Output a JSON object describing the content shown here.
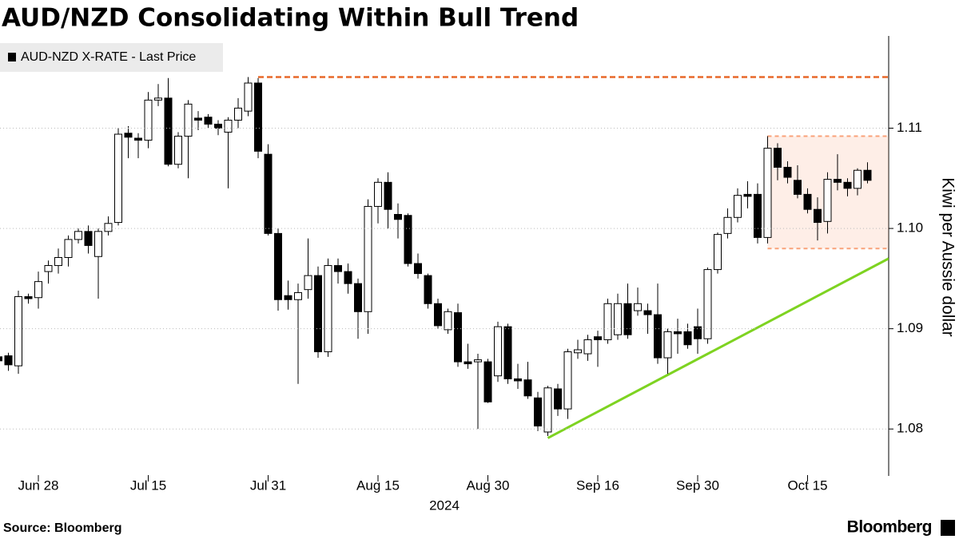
{
  "chart_data": {
    "type": "candlestick",
    "title": "AUD/NZD Consolidating Within Bull Trend",
    "legend": "AUD-NZD X-RATE - Last Price",
    "y_axis_label": "Kiwi per Aussie dollar",
    "source": "Source: Bloomberg",
    "brand": "Bloomberg",
    "year_label": "2024",
    "categories": [
      null,
      null,
      null,
      null,
      "Jun 28",
      null,
      null,
      null,
      null,
      null,
      null,
      null,
      null,
      null,
      null,
      "Jul 15",
      null,
      null,
      null,
      null,
      null,
      null,
      null,
      null,
      null,
      null,
      null,
      "Jul 31",
      null,
      null,
      null,
      null,
      null,
      null,
      null,
      null,
      null,
      null,
      "Aug 15",
      null,
      null,
      null,
      null,
      null,
      null,
      null,
      null,
      null,
      null,
      "Aug 30",
      null,
      null,
      null,
      null,
      null,
      null,
      null,
      null,
      null,
      null,
      "Sep 16",
      null,
      null,
      null,
      null,
      null,
      null,
      null,
      null,
      null,
      "Sep 30",
      null,
      null,
      null,
      null,
      null,
      null,
      null,
      null,
      null,
      null,
      "Oct 15",
      null,
      null,
      null,
      null,
      null,
      null
    ],
    "open": [
      1.0872,
      1.0873,
      1.0863,
      1.0932,
      1.0931,
      1.0957,
      1.0963,
      1.0971,
      1.0989,
      1.0997,
      1.0972,
      1.0997,
      1.1006,
      1.1095,
      1.109,
      1.1088,
      1.1128,
      1.113,
      1.1064,
      1.1092,
      1.111,
      1.1111,
      1.1104,
      1.1096,
      1.1108,
      1.1117,
      1.1145,
      1.1074,
      1.0995,
      1.0933,
      1.0929,
      1.0939,
      1.0953,
      1.0877,
      1.0963,
      1.0957,
      1.0945,
      1.0917,
      1.1022,
      1.1046,
      1.1014,
      1.1013,
      1.0965,
      1.0953,
      1.0925,
      1.0899,
      1.0916,
      1.0867,
      1.0867,
      1.0867,
      1.0853,
      1.0902,
      1.085,
      1.0849,
      1.0831,
      1.0797,
      1.084,
      1.082,
      1.0876,
      1.0875,
      1.0892,
      1.0889,
      1.0894,
      1.0925,
      1.0918,
      1.0918,
      1.0914,
      1.0871,
      1.0897,
      1.0897,
      1.0902,
      1.089,
      1.0959,
      1.0995,
      1.1011,
      1.1034,
      1.1034,
      1.0991,
      1.108,
      1.1061,
      1.1048,
      1.1034,
      1.1019,
      1.1007,
      1.1049,
      1.1046,
      1.104,
      1.1058
    ],
    "high": [
      1.0877,
      1.0876,
      1.0938,
      1.0935,
      1.0957,
      1.0968,
      1.098,
      1.0993,
      1.1,
      1.1003,
      1.1,
      1.1012,
      1.11,
      1.1102,
      1.1095,
      1.1136,
      1.1144,
      1.115,
      1.1096,
      1.1128,
      1.1117,
      1.1114,
      1.1108,
      1.1111,
      1.113,
      1.1151,
      1.115,
      1.1084,
      1.1,
      1.0948,
      1.0945,
      1.099,
      1.0962,
      1.097,
      1.097,
      1.0965,
      1.095,
      1.1029,
      1.105,
      1.1056,
      1.1025,
      1.1015,
      1.0975,
      1.0955,
      1.093,
      1.092,
      1.0925,
      1.0885,
      1.0875,
      1.087,
      1.0907,
      1.0905,
      1.0865,
      1.0867,
      1.0837,
      1.0843,
      1.0845,
      1.088,
      1.0889,
      1.0894,
      1.0898,
      1.093,
      1.0935,
      1.0945,
      1.0941,
      1.0925,
      1.0945,
      1.09,
      1.091,
      1.0905,
      1.092,
      1.0961,
      1.0996,
      1.102,
      1.104,
      1.1047,
      1.1045,
      1.1092,
      1.1085,
      1.1067,
      1.1063,
      1.104,
      1.1031,
      1.1056,
      1.1074,
      1.105,
      1.106,
      1.1066
    ],
    "low": [
      1.086,
      1.0858,
      1.0855,
      1.0925,
      1.092,
      1.0945,
      1.0955,
      1.0962,
      1.0985,
      1.0975,
      1.093,
      1.0993,
      1.1003,
      1.107,
      1.107,
      1.108,
      1.1122,
      1.1062,
      1.106,
      1.105,
      1.1098,
      1.11,
      1.1093,
      1.104,
      1.11,
      1.1112,
      1.107,
      1.0993,
      1.0918,
      1.0919,
      1.0845,
      1.093,
      1.0871,
      1.0872,
      1.0945,
      1.0935,
      1.089,
      1.0895,
      1.1005,
      1.1,
      1.099,
      1.0962,
      1.095,
      1.092,
      1.09,
      1.0895,
      1.0862,
      1.086,
      1.08,
      1.0826,
      1.0847,
      1.0845,
      1.084,
      1.083,
      1.0798,
      1.0793,
      1.0813,
      1.081,
      1.087,
      1.0868,
      1.0862,
      1.0885,
      1.0889,
      1.089,
      1.0913,
      1.0895,
      1.0865,
      1.0855,
      1.0875,
      1.088,
      1.0875,
      1.0885,
      1.0955,
      1.099,
      1.1006,
      1.102,
      1.0985,
      1.0985,
      1.1048,
      1.1045,
      1.103,
      1.1015,
      1.0988,
      1.0995,
      1.1038,
      1.1032,
      1.1033,
      1.1045
    ],
    "close": [
      1.0868,
      1.0864,
      1.0932,
      1.093,
      1.0947,
      1.0963,
      1.0971,
      1.0989,
      1.0997,
      1.0983,
      1.0997,
      1.1005,
      1.1094,
      1.1091,
      1.1088,
      1.1128,
      1.113,
      1.1064,
      1.1092,
      1.1124,
      1.1108,
      1.1104,
      1.11,
      1.1108,
      1.112,
      1.1145,
      1.1077,
      1.0995,
      1.0929,
      1.0929,
      1.0936,
      1.0953,
      1.0877,
      1.0963,
      1.0957,
      1.0945,
      1.0917,
      1.1022,
      1.1046,
      1.1019,
      1.1009,
      1.0965,
      1.0955,
      1.0925,
      1.0903,
      1.0917,
      1.0867,
      1.0865,
      1.0869,
      1.0827,
      1.0902,
      1.085,
      1.0848,
      1.0833,
      1.0803,
      1.0841,
      1.082,
      1.0877,
      1.0879,
      1.0889,
      1.0889,
      1.0925,
      1.0925,
      1.0894,
      1.0925,
      1.0914,
      1.0871,
      1.0897,
      1.0895,
      1.0884,
      1.089,
      1.0959,
      1.0994,
      1.1011,
      1.1033,
      1.1032,
      1.0991,
      1.108,
      1.1061,
      1.1051,
      1.1034,
      1.1019,
      1.1006,
      1.1049,
      1.1046,
      1.104,
      1.1058,
      1.1048
    ],
    "up_color": "#ffffff",
    "down_color": "#000000",
    "resistance": 1.1151,
    "resistance_color": "#e8692a",
    "range": [
      1.098,
      1.1092
    ],
    "range_color": "#f9a27a",
    "trendline": [
      1.0791,
      1.097
    ],
    "trendline_color": "#7ed321",
    "ylim": [
      1.0754,
      1.1188
    ],
    "yticks": [
      1.08,
      1.09,
      {
        "value": 1.1,
        "label": "1.10"
      },
      1.11
    ],
    "grid": true
  }
}
